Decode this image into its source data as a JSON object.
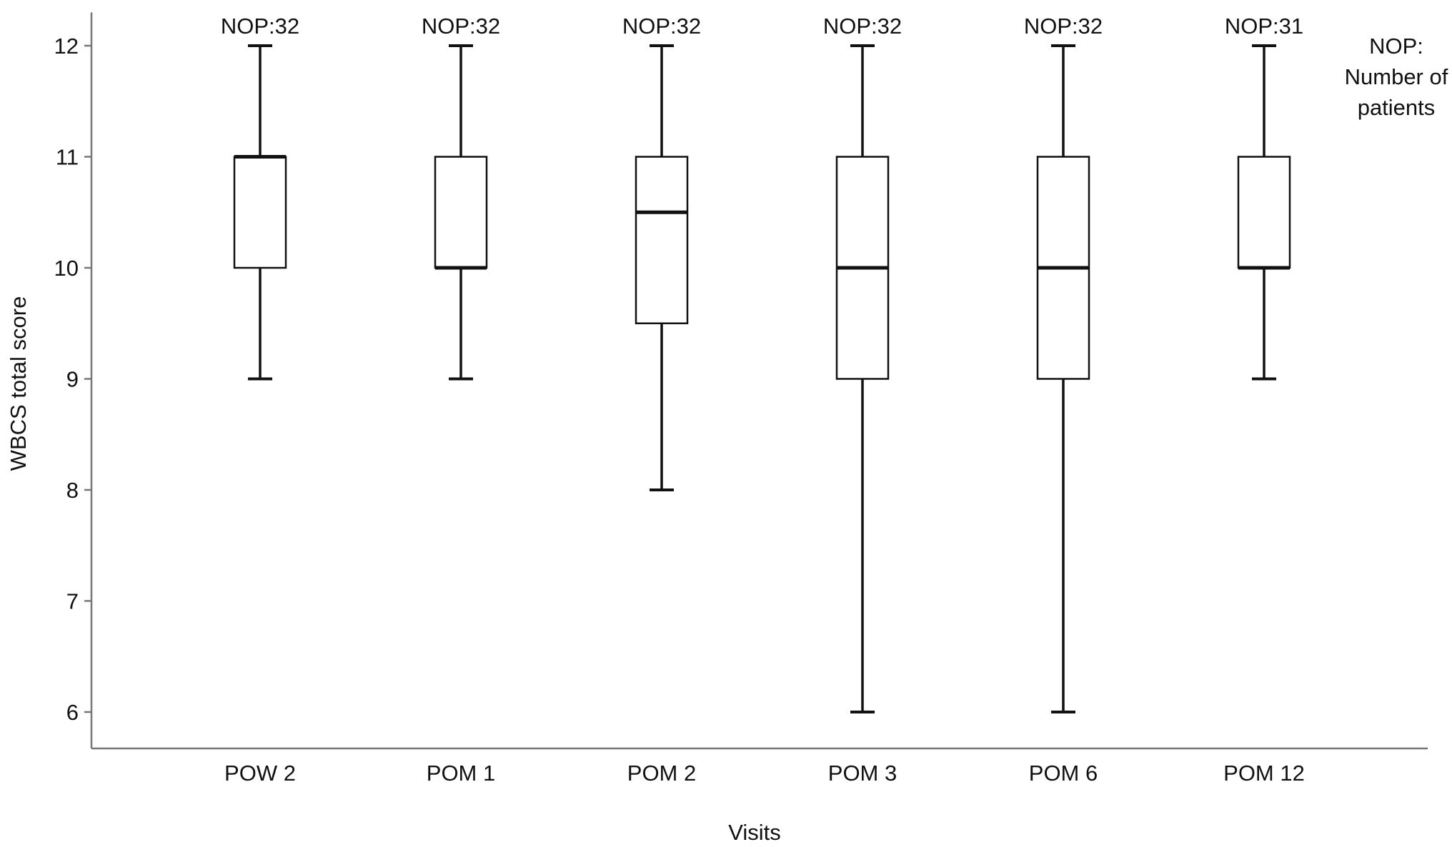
{
  "chart_data": {
    "type": "box",
    "title": "",
    "xlabel": "Visits",
    "ylabel": "WBCS total score",
    "ylim": [
      5.65,
      12.3
    ],
    "yticks": [
      6,
      7,
      8,
      9,
      10,
      11,
      12
    ],
    "grid": false,
    "categories": [
      "POW 2",
      "POM 1",
      "POM 2",
      "POM 3",
      "POM 6",
      "POM 12"
    ],
    "boxes": [
      {
        "min": 9,
        "q1": 10,
        "median": 11,
        "q3": 11,
        "max": 12
      },
      {
        "min": 9,
        "q1": 10,
        "median": 10,
        "q3": 11,
        "max": 12
      },
      {
        "min": 8,
        "q1": 9.5,
        "median": 10.5,
        "q3": 11,
        "max": 12
      },
      {
        "min": 6,
        "q1": 9,
        "median": 10,
        "q3": 11,
        "max": 12
      },
      {
        "min": 6,
        "q1": 9,
        "median": 10,
        "q3": 11,
        "max": 12
      },
      {
        "min": 9,
        "q1": 10,
        "median": 10,
        "q3": 11,
        "max": 12
      }
    ],
    "annotations": [
      "NOP:32",
      "NOP:32",
      "NOP:32",
      "NOP:32",
      "NOP:32",
      "NOP:31"
    ],
    "note_lines": [
      "NOP:",
      "Number of",
      "patients"
    ],
    "colors": {
      "box_fill": "#ffffff",
      "stroke": "#111111",
      "axis": "#777777"
    }
  }
}
